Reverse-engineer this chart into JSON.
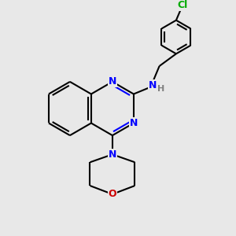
{
  "background_color": "#e8e8e8",
  "bond_color": "#000000",
  "N_color": "#0000ff",
  "O_color": "#cc0000",
  "Cl_color": "#00aa00",
  "H_color": "#808080",
  "bond_width": 1.5,
  "fig_size": [
    3.0,
    3.0
  ],
  "dpi": 100,
  "xlim": [
    0,
    10
  ],
  "ylim": [
    0,
    10
  ]
}
